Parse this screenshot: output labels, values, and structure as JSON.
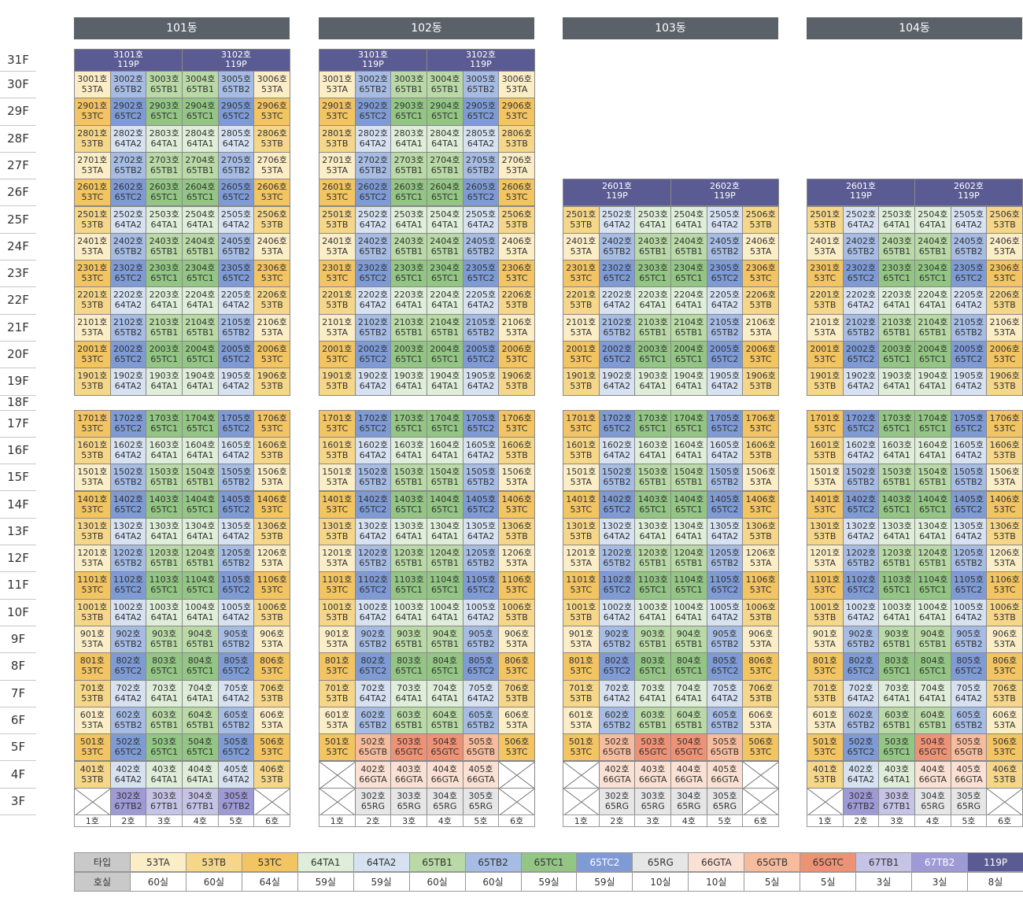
{
  "buildings": [
    {
      "name": "101동",
      "top_floor": 31,
      "last5": [
        "53TC",
        "65TC2",
        "65TC1",
        "65TC1",
        "65TC2",
        "53TC"
      ],
      "f4": "std",
      "f3": "67T"
    },
    {
      "name": "102동",
      "top_floor": 31,
      "last5": [
        "53TC",
        "65GTB",
        "65GTC",
        "65GTC",
        "65GTB",
        "53TC"
      ],
      "f4": "66GTA",
      "f3": "65RG"
    },
    {
      "name": "103동",
      "top_floor": 26,
      "last5": [
        "53TC",
        "65GTB",
        "65GTC",
        "65GTC",
        "65GTB",
        "53TC"
      ],
      "f4": "66GTA",
      "f3": "65RG"
    },
    {
      "name": "104동",
      "top_floor": 26,
      "last5": [
        "53TC",
        "65TC2",
        "65TC1",
        "65GTC",
        "65GTB",
        "53TC"
      ],
      "f4": "mixed",
      "f3": "mixed"
    }
  ],
  "floors": [
    "31F",
    "30F",
    "29F",
    "28F",
    "27F",
    "26F",
    "25F",
    "24F",
    "23F",
    "22F",
    "21F",
    "20F",
    "19F",
    "18F",
    "17F",
    "16F",
    "15F",
    "14F",
    "13F",
    "12F",
    "11F",
    "10F",
    "9F",
    "8F",
    "7F",
    "6F",
    "5F",
    "4F",
    "3F"
  ],
  "line_labels": [
    "1호",
    "2호",
    "3호",
    "4호",
    "5호",
    "6호"
  ],
  "penthouse_type": "119P",
  "unit_suffix": "호",
  "floor_pattern": {
    "TC": [
      "53TC",
      "65TC2",
      "65TC1",
      "65TC1",
      "65TC2",
      "53TC"
    ],
    "TAB": [
      "53TB",
      "64TA2",
      "64TA1",
      "64TA1",
      "64TA2",
      "53TB"
    ],
    "TB": [
      "53TA",
      "65TB2",
      "65TB1",
      "65TB1",
      "65TB2",
      "53TA"
    ]
  },
  "legend": {
    "type_header": "타입",
    "count_header": "호실",
    "items": [
      {
        "type": "53TA",
        "count": "60실",
        "color": "#fbeec7"
      },
      {
        "type": "53TB",
        "count": "60실",
        "color": "#f6d78a"
      },
      {
        "type": "53TC",
        "count": "64실",
        "color": "#f2c462"
      },
      {
        "type": "64TA1",
        "count": "59실",
        "color": "#dfeed8"
      },
      {
        "type": "64TA2",
        "count": "59실",
        "color": "#d6e1f2"
      },
      {
        "type": "65TB1",
        "count": "60실",
        "color": "#b9d9a6"
      },
      {
        "type": "65TB2",
        "count": "60실",
        "color": "#a6bce4"
      },
      {
        "type": "65TC1",
        "count": "59실",
        "color": "#93c684"
      },
      {
        "type": "65TC2",
        "count": "59실",
        "color": "#7e9bd6"
      },
      {
        "type": "65RG",
        "count": "10실",
        "color": "#e6e6e6"
      },
      {
        "type": "66GTA",
        "count": "10실",
        "color": "#fbe0d4"
      },
      {
        "type": "65GTB",
        "count": "5실",
        "color": "#f7bc9e"
      },
      {
        "type": "65GTC",
        "count": "5실",
        "color": "#ee9276"
      },
      {
        "type": "67TB1",
        "count": "3실",
        "color": "#c6c4e6"
      },
      {
        "type": "67TB2",
        "count": "3실",
        "color": "#9d9ad6"
      },
      {
        "type": "119P",
        "count": "8실",
        "color": "#5a5b93"
      }
    ]
  }
}
